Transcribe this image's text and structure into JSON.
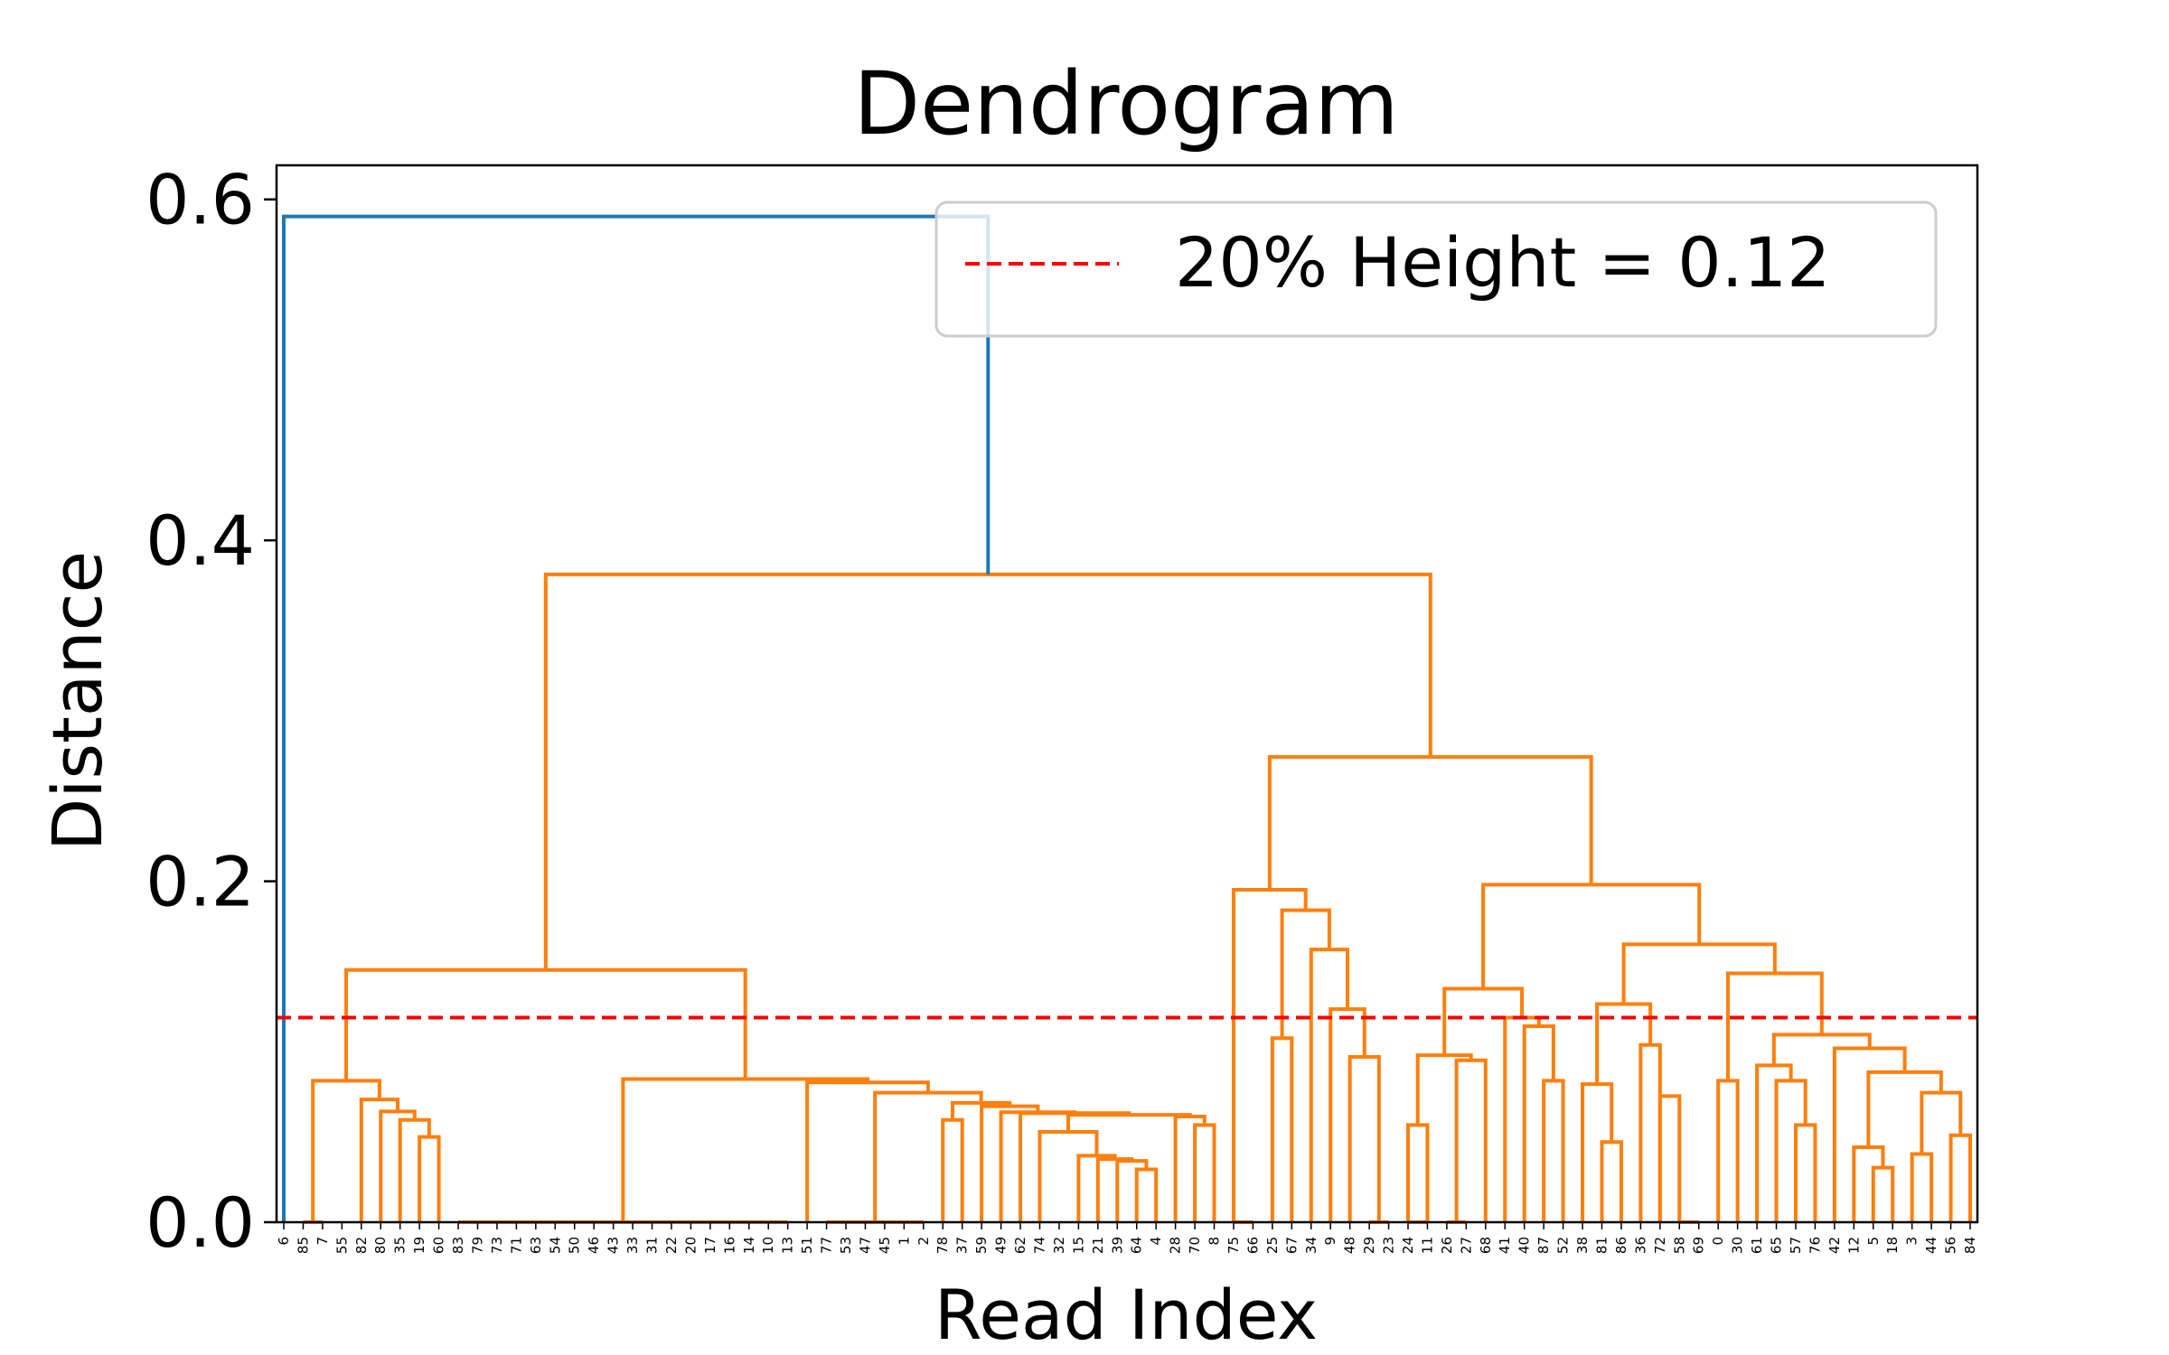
{
  "chart_data": {
    "type": "dendrogram",
    "title": "Dendrogram",
    "xlabel": "Read Index",
    "ylabel": "Distance",
    "ylim": [
      0,
      0.62
    ],
    "y_ticks": [
      0.0,
      0.2,
      0.4,
      0.6
    ],
    "y_tick_labels": [
      "0.0",
      "0.2",
      "0.4",
      "0.6"
    ],
    "x_tick_labels": [
      "6",
      "85",
      "7",
      "55",
      "82",
      "80",
      "35",
      "19",
      "60",
      "83",
      "79",
      "73",
      "71",
      "63",
      "54",
      "50",
      "46",
      "43",
      "33",
      "31",
      "22",
      "20",
      "17",
      "16",
      "14",
      "10",
      "13",
      "51",
      "77",
      "53",
      "47",
      "45",
      "1",
      "2",
      "78",
      "37",
      "59",
      "49",
      "62",
      "74",
      "32",
      "15",
      "21",
      "39",
      "64",
      "4",
      "28",
      "70",
      "8",
      "75",
      "66",
      "25",
      "67",
      "34",
      "9",
      "48",
      "29",
      "23",
      "24",
      "11",
      "26",
      "27",
      "68",
      "41",
      "40",
      "87",
      "52",
      "38",
      "81",
      "86",
      "36",
      "72",
      "58",
      "69",
      "0",
      "30",
      "61",
      "65",
      "57",
      "76",
      "42",
      "12",
      "5",
      "18",
      "3",
      "44",
      "56",
      "84"
    ],
    "threshold": {
      "value": 0.12,
      "label": "20% Height = 0.12",
      "color": "#ff0000"
    },
    "legend": {
      "placement": "top-right",
      "entries": [
        "20% Height = 0.12"
      ]
    },
    "colors": {
      "cluster": "#ff7f0e",
      "above_threshold": "#1f77b4",
      "frame": "#000000"
    },
    "grid": false,
    "links": [
      {
        "l": 49,
        "r": 50,
        "h": 0.0,
        "c": "cluster"
      },
      {
        "l": 1,
        "r": 2,
        "h": 0.0,
        "c": "cluster"
      },
      {
        "l": 7,
        "r": 8,
        "h": 0.05,
        "c": "cluster"
      },
      {
        "l": 6,
        "r": [
          7,
          8
        ],
        "h": 0.06,
        "c": "cluster"
      },
      {
        "l": 5,
        "r": [
          6,
          8
        ],
        "h": 0.065,
        "c": "cluster"
      },
      {
        "l": 4,
        "r": [
          5,
          8
        ],
        "h": 0.072,
        "c": "cluster"
      },
      {
        "l": [
          1,
          2
        ],
        "r": [
          4,
          8
        ],
        "h": 0.083,
        "c": "cluster"
      },
      {
        "l": 9,
        "r": 26,
        "h": 0.0,
        "c": "cluster"
      },
      {
        "l": 28,
        "r": 33,
        "h": 0.0,
        "c": "cluster"
      },
      {
        "l": 34,
        "r": 35,
        "h": 0.06,
        "c": "cluster"
      },
      {
        "l": 44,
        "r": 45,
        "h": 0.031,
        "c": "cluster"
      },
      {
        "l": 43,
        "r": [
          44,
          45
        ],
        "h": 0.036,
        "c": "cluster"
      },
      {
        "l": 42,
        "r": [
          43,
          45
        ],
        "h": 0.037,
        "c": "cluster"
      },
      {
        "l": 41,
        "r": [
          42,
          45
        ],
        "h": 0.039,
        "c": "cluster"
      },
      {
        "l": 39,
        "r": [
          41,
          45
        ],
        "h": 0.053,
        "c": "cluster"
      },
      {
        "l": 47,
        "r": 48,
        "h": 0.057,
        "c": "cluster"
      },
      {
        "l": 46,
        "r": [
          47,
          48
        ],
        "h": 0.062,
        "c": "cluster"
      },
      {
        "l": [
          39,
          45
        ],
        "r": [
          46,
          48
        ],
        "h": 0.063,
        "c": "cluster"
      },
      {
        "l": 38,
        "r": [
          39,
          48
        ],
        "h": 0.064,
        "c": "cluster"
      },
      {
        "l": 37,
        "r": [
          38,
          48
        ],
        "h": 0.0645,
        "c": "cluster"
      },
      {
        "l": 36,
        "r": [
          37,
          48
        ],
        "h": 0.068,
        "c": "cluster"
      },
      {
        "l": [
          34,
          35
        ],
        "r": [
          36,
          48
        ],
        "h": 0.07,
        "c": "cluster"
      },
      {
        "l": [
          28,
          33
        ],
        "r": [
          34,
          48
        ],
        "h": 0.076,
        "c": "cluster"
      },
      {
        "l": 27,
        "r": [
          28,
          48
        ],
        "h": 0.082,
        "c": "cluster"
      },
      {
        "l": [
          9,
          26
        ],
        "r": [
          27,
          48
        ],
        "h": 0.084,
        "c": "cluster"
      },
      {
        "l": [
          1,
          8
        ],
        "r": [
          9,
          48
        ],
        "h": 0.148,
        "c": "cluster"
      },
      {
        "l": 51,
        "r": 52,
        "h": 0.108,
        "c": "cluster"
      },
      {
        "l": 56,
        "r": 57,
        "h": 0.0,
        "c": "cluster"
      },
      {
        "l": 58,
        "r": 59,
        "h": 0.0,
        "c": "cluster"
      },
      {
        "l": 55,
        "r": [
          56,
          57
        ],
        "h": 0.097,
        "c": "cluster"
      },
      {
        "l": 54,
        "r": [
          55,
          57
        ],
        "h": 0.125,
        "c": "cluster"
      },
      {
        "l": 53,
        "r": [
          54,
          57
        ],
        "h": 0.16,
        "c": "cluster"
      },
      {
        "l": [
          51,
          52
        ],
        "r": [
          53,
          57
        ],
        "h": 0.183,
        "c": "cluster"
      },
      {
        "l": 49,
        "r": [
          51,
          57
        ],
        "h": 0.195,
        "c": "cluster"
      },
      {
        "l": 58,
        "r": 59,
        "h": 0.057,
        "c": "cluster"
      },
      {
        "l": 60,
        "r": 61,
        "h": 0.0,
        "c": "cluster"
      },
      {
        "l": [
          60,
          61
        ],
        "r": 62,
        "h": 0.095,
        "c": "cluster"
      },
      {
        "l": [
          58,
          59
        ],
        "r": [
          60,
          62
        ],
        "h": 0.098,
        "c": "cluster"
      },
      {
        "l": 65,
        "r": 66,
        "h": 0.083,
        "c": "cluster"
      },
      {
        "l": 64,
        "r": [
          65,
          66
        ],
        "h": 0.115,
        "c": "cluster"
      },
      {
        "l": 63,
        "r": [
          64,
          66
        ],
        "h": 0.12,
        "c": "cluster"
      },
      {
        "l": [
          58,
          62
        ],
        "r": [
          63,
          66
        ],
        "h": 0.137,
        "c": "cluster"
      },
      {
        "l": 68,
        "r": 69,
        "h": 0.047,
        "c": "cluster"
      },
      {
        "l": 67,
        "r": [
          68,
          69
        ],
        "h": 0.081,
        "c": "cluster"
      },
      {
        "l": 71,
        "r": 72,
        "h": 0.074,
        "c": "cluster"
      },
      {
        "l": 72,
        "r": 73,
        "h": 0.0,
        "c": "cluster"
      },
      {
        "l": 70,
        "r": [
          71,
          73
        ],
        "h": 0.104,
        "c": "cluster"
      },
      {
        "l": [
          67,
          69
        ],
        "r": [
          70,
          73
        ],
        "h": 0.128,
        "c": "cluster"
      },
      {
        "l": 74,
        "r": 75,
        "h": 0.083,
        "c": "cluster"
      },
      {
        "l": 78,
        "r": 79,
        "h": 0.057,
        "c": "cluster"
      },
      {
        "l": 77,
        "r": [
          78,
          79
        ],
        "h": 0.083,
        "c": "cluster"
      },
      {
        "l": 76,
        "r": [
          77,
          79
        ],
        "h": 0.092,
        "c": "cluster"
      },
      {
        "l": 82,
        "r": 83,
        "h": 0.032,
        "c": "cluster"
      },
      {
        "l": 81,
        "r": [
          82,
          83
        ],
        "h": 0.044,
        "c": "cluster"
      },
      {
        "l": 84,
        "r": 85,
        "h": 0.04,
        "c": "cluster"
      },
      {
        "l": 86,
        "r": 87,
        "h": 0.051,
        "c": "cluster"
      },
      {
        "l": [
          84,
          85
        ],
        "r": [
          86,
          87
        ],
        "h": 0.076,
        "c": "cluster"
      },
      {
        "l": [
          81,
          83
        ],
        "r": [
          84,
          87
        ],
        "h": 0.088,
        "c": "cluster"
      },
      {
        "l": 80,
        "r": [
          81,
          87
        ],
        "h": 0.102,
        "c": "cluster"
      },
      {
        "l": [
          76,
          79
        ],
        "r": [
          80,
          87
        ],
        "h": 0.11,
        "c": "cluster"
      },
      {
        "l": [
          74,
          75
        ],
        "r": [
          76,
          87
        ],
        "h": 0.146,
        "c": "cluster"
      },
      {
        "l": [
          67,
          73
        ],
        "r": [
          74,
          87
        ],
        "h": 0.163,
        "c": "cluster"
      },
      {
        "l": [
          58,
          66
        ],
        "r": [
          67,
          87
        ],
        "h": 0.198,
        "c": "cluster"
      },
      {
        "l": [
          49,
          57
        ],
        "r": [
          58,
          87
        ],
        "h": 0.273,
        "c": "cluster"
      },
      {
        "l": [
          1,
          48
        ],
        "r": [
          49,
          87
        ],
        "h": 0.38,
        "c": "cluster"
      },
      {
        "l": 0,
        "r": [
          1,
          87
        ],
        "h": 0.59,
        "c": "above_threshold"
      }
    ]
  }
}
